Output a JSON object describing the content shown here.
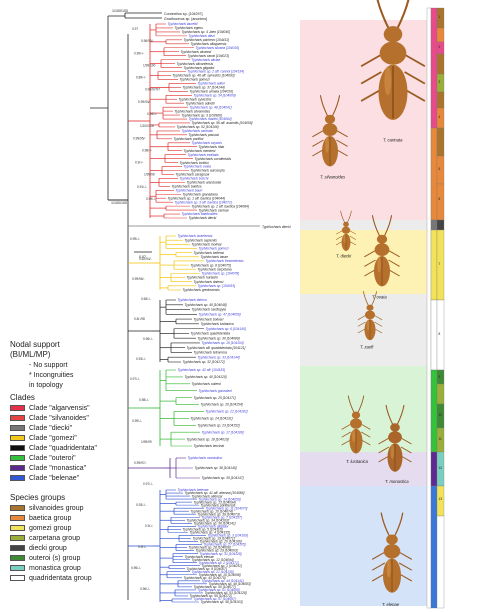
{
  "figure": {
    "outgroup_taxa": [
      "Corcinellus sp. [104297]",
      "Gnathocerus sp. [anonimo]"
    ],
    "root_support": "1/100/100",
    "mid_support": "1/100/100",
    "scale_label": "0.07",
    "upper_support_labels": [
      "0.97",
      "0.96/95/-",
      "0.99/-/-",
      "1/99/100",
      "0.89/-/-",
      "0.98/97/97",
      "0.99/94/-",
      "0.94/-/-",
      "1/100/100",
      "0.99/95/-",
      "0.98/-/-",
      "0.9/-/-",
      "1/99/99",
      "0.91/-/-",
      "0.99/-/-"
    ],
    "middle_support_labels": [
      "0.99/-/-",
      "0.62/94/-",
      "0.99/96/-",
      "0.65/-/-",
      "0.8/-/98",
      "0.96/-/-",
      "0.93/-/-"
    ],
    "lower_support_labels": [
      "0.97/-/-",
      "0.98/-/-",
      "0.99/-/-",
      "1/99/99",
      "0.99/97/-",
      "0.97/-/-",
      "0.93/-/-",
      "0.9/-/-",
      "0.9/-/-",
      "0.96/-/-",
      "0.96/-/-"
    ]
  },
  "taxa": {
    "red": [
      "Typhlocharis laurettii",
      "Typhlocharis egens",
      "Typhlocharis sp. 4 Jaen [104040]",
      "Typhlocharis diezi",
      "Typhlocharis pacheco [104411]",
      "Typhlocharis aliaguensis",
      "Typhlocharis silvana [104016]",
      "Typhlocharis alvarezi",
      "Typhlocharis carrai [104023]",
      "Typhlocharis aliciae",
      "Typhlocharis alicantensis",
      "Typhlocharis gilgadoi",
      "Typhlocharis sp. 2 aff. carinoi [104134]",
      "Typhlocharis sp. 46 aff. sylvestris [104093]",
      "Typhlocharis gomezi",
      "Typhlocharis adleri",
      "Typhlocharis sp. 37 [104144]",
      "Typhlocharis armata [104016]",
      "Typhlocharis sp. 54 [104009]",
      "Typhlocharis sylvestris",
      "Typhlocharis adnetii",
      "Typhlocharis sp. 48 [104041]",
      "Typhlocharis silvanoides",
      "Typhlocharis sp. 3 [103960]",
      "Typhlocharis martini [104064]",
      "Typhlocharis sp. 56 aff. assimilis [104059]",
      "Typhlocharis sp. 52 [104166]",
      "Typhlocharis carinata",
      "Typhlocharis passosi",
      "Typhlocharis portilloi",
      "Typhlocharis oxyacis",
      "Typhlocharis ribai",
      "Typhlocharis mendesi",
      "Typhlocharis exaltata",
      "Typhlocharis occidentalis",
      "Typhlocharis toribioi",
      "Typhlocharis ovata",
      "Typhlocharis aurosepta",
      "Typhlocharis zaragozai",
      "Typhlocharis boschi",
      "Typhlocharis aranzuelai",
      "Typhlocharis baetica",
      "Typhlocharis bauri",
      "Typhlocharis granadana",
      "Typhlocharis sp. 1 aff. baetica [104044]",
      "Typhlocharis sp. 3 aff. baetica [104071]",
      "Typhlocharis sp. 2 aff. baetica [104084]",
      "Typhlocharis carinae",
      "Typhlocharis baeticoides",
      "Typhlocharis diecki"
    ],
    "yellow": [
      "Typhlocharis israelensis",
      "Typhlocharis sapientis",
      "Typhlocharis molinai",
      "Typhlocharis gomezi",
      "Typhlocharis bellensi",
      "Typhlocharis lanae",
      "Typhlocharis fresnedensis",
      "Typhlocharis sp. 8 [104075]",
      "Typhlocharis carpetana",
      "Typhlocharis sp. [104078]",
      "Typhlocharis hurtadoi",
      "Typhlocharis dalensi",
      "Typhlocharis sp. [104033]",
      "Typhlocharis gredosensis"
    ],
    "black": [
      "Typhlocharis iberica",
      "Typhlocharis sp. 45 [104048]",
      "Typhlocharis cardiopyla",
      "Typhlocharis sp. 47 [104056]",
      "Typhlocharis bolivari",
      "Typhlocharis lusitanica",
      "Typhlocharis sp. 6 [104145]",
      "Typhlocharis quadridentata",
      "Typhlocharis sp. 30 [104089]",
      "Typhlocharis sp. 16 [104104]",
      "Typhlocharis aff. quadridentata [104121]",
      "Typhlocharis tetramera",
      "Typhlocharis sp. 33 [104144]",
      "Typhlocharis sp. 32 [104172]"
    ],
    "green": [
      "Typhlocharis sp. 42 aff. [104181]",
      "Typhlocharis sp. 40 [104120]",
      "Typhlocharis outeroi",
      "Typhlocharis gonzalezi",
      "Typhlocharis sp. 25 [104171]",
      "Typhlocharis sp. 26 [104154]",
      "Typhlocharis sp. 22 [104182]",
      "Typhlocharis sp. 24 [104131]",
      "Typhlocharis sp. 23 [104152]",
      "Typhlocharis sp. 17 [104186]",
      "Typhlocharis sp. 18 [104019]",
      "Typhlocharis lencinai"
    ],
    "purple": [
      "Typhlocharis monastica",
      "Typhlocharis sp. 38 [104140]",
      "Typhlocharis sp. 35 [104147]"
    ],
    "blue": [
      "Typhlocharis belenae",
      "Typhlocharis sp. 41 aff. atienzai [104086]",
      "Typhlocharis atienzai",
      "Typhlocharis sp. 14 [104059]",
      "Typhlocharis sp. 13 [104094]",
      "Typhlocharis portillensis",
      "Typhlocharis sp. 11 [104070]",
      "Typhlocharis sp. 10 [104074]",
      "Typhlocharis sp. 39 [104073]",
      "Typhlocharis sp. 7 [104157]",
      "Typhlocharis sp. 34 [104163]",
      "Typhlocharis sp. 36 [104141]",
      "Typhlocharis gilgadoi",
      "Typhlocharis sp. 5 [104110]",
      "Typhlocharis sp. 4 [104135]",
      "Typhlocharis sp. 3 [104169]",
      "Typhlocharis sp. 19 [104071]",
      "Typhlocharis sp. 20 [104166]",
      "Typhlocharis sp. 27 [104105]",
      "Typhlocharis sp. 28 [104066]",
      "Typhlocharis sp. 29 [104003]",
      "Typhlocharis sp. 31 [104128]",
      "Typhlocharis elenae",
      "Typhlocharis sp. 12 [104094]",
      "Typhlocharis sp. 2 [104171]",
      "Typhlocharis sp. 1 [104031]",
      "Typhlocharis sp. 9 [104007]",
      "Typhlocharis sp. 21 [104135]",
      "Typhlocharis sp. 15 [104098]",
      "Typhlocharis sp. 43 [104175]",
      "Typhlocharis sp. 44 [104141]",
      "Typhlocharis sp. 49 [104083]",
      "Typhlocharis sp. 50 [104077]",
      "Typhlocharis sp. 51 [104095]",
      "Typhlocharis sp. 53 [104128]",
      "Typhlocharis sp. 55 [104172]",
      "Typhlocharis sp. 57 [104097]",
      "Typhlocharis sp. 58 [104103]"
    ]
  },
  "photos": [
    {
      "key": "carinata",
      "label": "T. carinata"
    },
    {
      "key": "silvanoides",
      "label": "T. silvanoides"
    },
    {
      "key": "diecki",
      "label": "T. diecki"
    },
    {
      "key": "ovata",
      "label": "T. ovata"
    },
    {
      "key": "zarifi",
      "label": "T. zarifi"
    },
    {
      "key": "lusitanica",
      "label": "T. lusitanica"
    },
    {
      "key": "monastica",
      "label": "T. monastica"
    },
    {
      "key": "elenae",
      "label": "T. elenae"
    }
  ],
  "legend": {
    "support_title": "Nodal support",
    "support_subtitle": "(BI/ML/MP)",
    "no_support": "- No support",
    "incongruence_label": "* Incongruities",
    "incongruence_label2": "in topology",
    "clades_title": "Clades",
    "clades": [
      {
        "label": "Clade \"algarvensis\"",
        "color": "#e8304a"
      },
      {
        "label": "Clade \"silvanoides\"",
        "color": "#e64545"
      },
      {
        "label": "Clade \"diecki\"",
        "color": "#777777"
      },
      {
        "label": "Clade \"gomezi\"",
        "color": "#f2c81c"
      },
      {
        "label": "Clade \"quadridentata\"",
        "color": "#111111"
      },
      {
        "label": "Clade \"outeroi\"",
        "color": "#33c23a"
      },
      {
        "label": "Clade \"monastica\"",
        "color": "#5c2a8e"
      },
      {
        "label": "Clade \"belenae\"",
        "color": "#3358d6"
      }
    ],
    "groups_title": "Species groups",
    "groups": [
      {
        "label": "silvanoides group",
        "color": "#a9742e"
      },
      {
        "label": "baetica group",
        "color": "#e8883a"
      },
      {
        "label": "gomezi group",
        "color": "#f2e25a"
      },
      {
        "label": "carpetana group",
        "color": "#9aae3a"
      },
      {
        "label": "diecki group",
        "color": "#444444"
      },
      {
        "label": "outeroi (s) group",
        "color": "#3f8a35"
      },
      {
        "label": "monastica group",
        "color": "#7ad0c0"
      },
      {
        "label": "quadridentata group",
        "color": "#ffffff"
      }
    ]
  },
  "colors": {
    "red": "#e02a2a",
    "yellow": "#f2c200",
    "black": "#222222",
    "green": "#2cb52c",
    "purple": "#5e2a92",
    "blue": "#2b4fd0",
    "taxon_blue": "#3a3ad8",
    "band_red": "#fbdfe2",
    "band_yellow": "#fdf2b3",
    "band_gray": "#ececec",
    "band_green": "#d9f3d6",
    "band_blue": "#d4e3f7"
  },
  "right_bar": {
    "labels": [
      "1",
      "2",
      "3",
      "4",
      "5",
      "6",
      "7",
      "8",
      "9",
      "10",
      "11",
      "12",
      "13"
    ]
  }
}
